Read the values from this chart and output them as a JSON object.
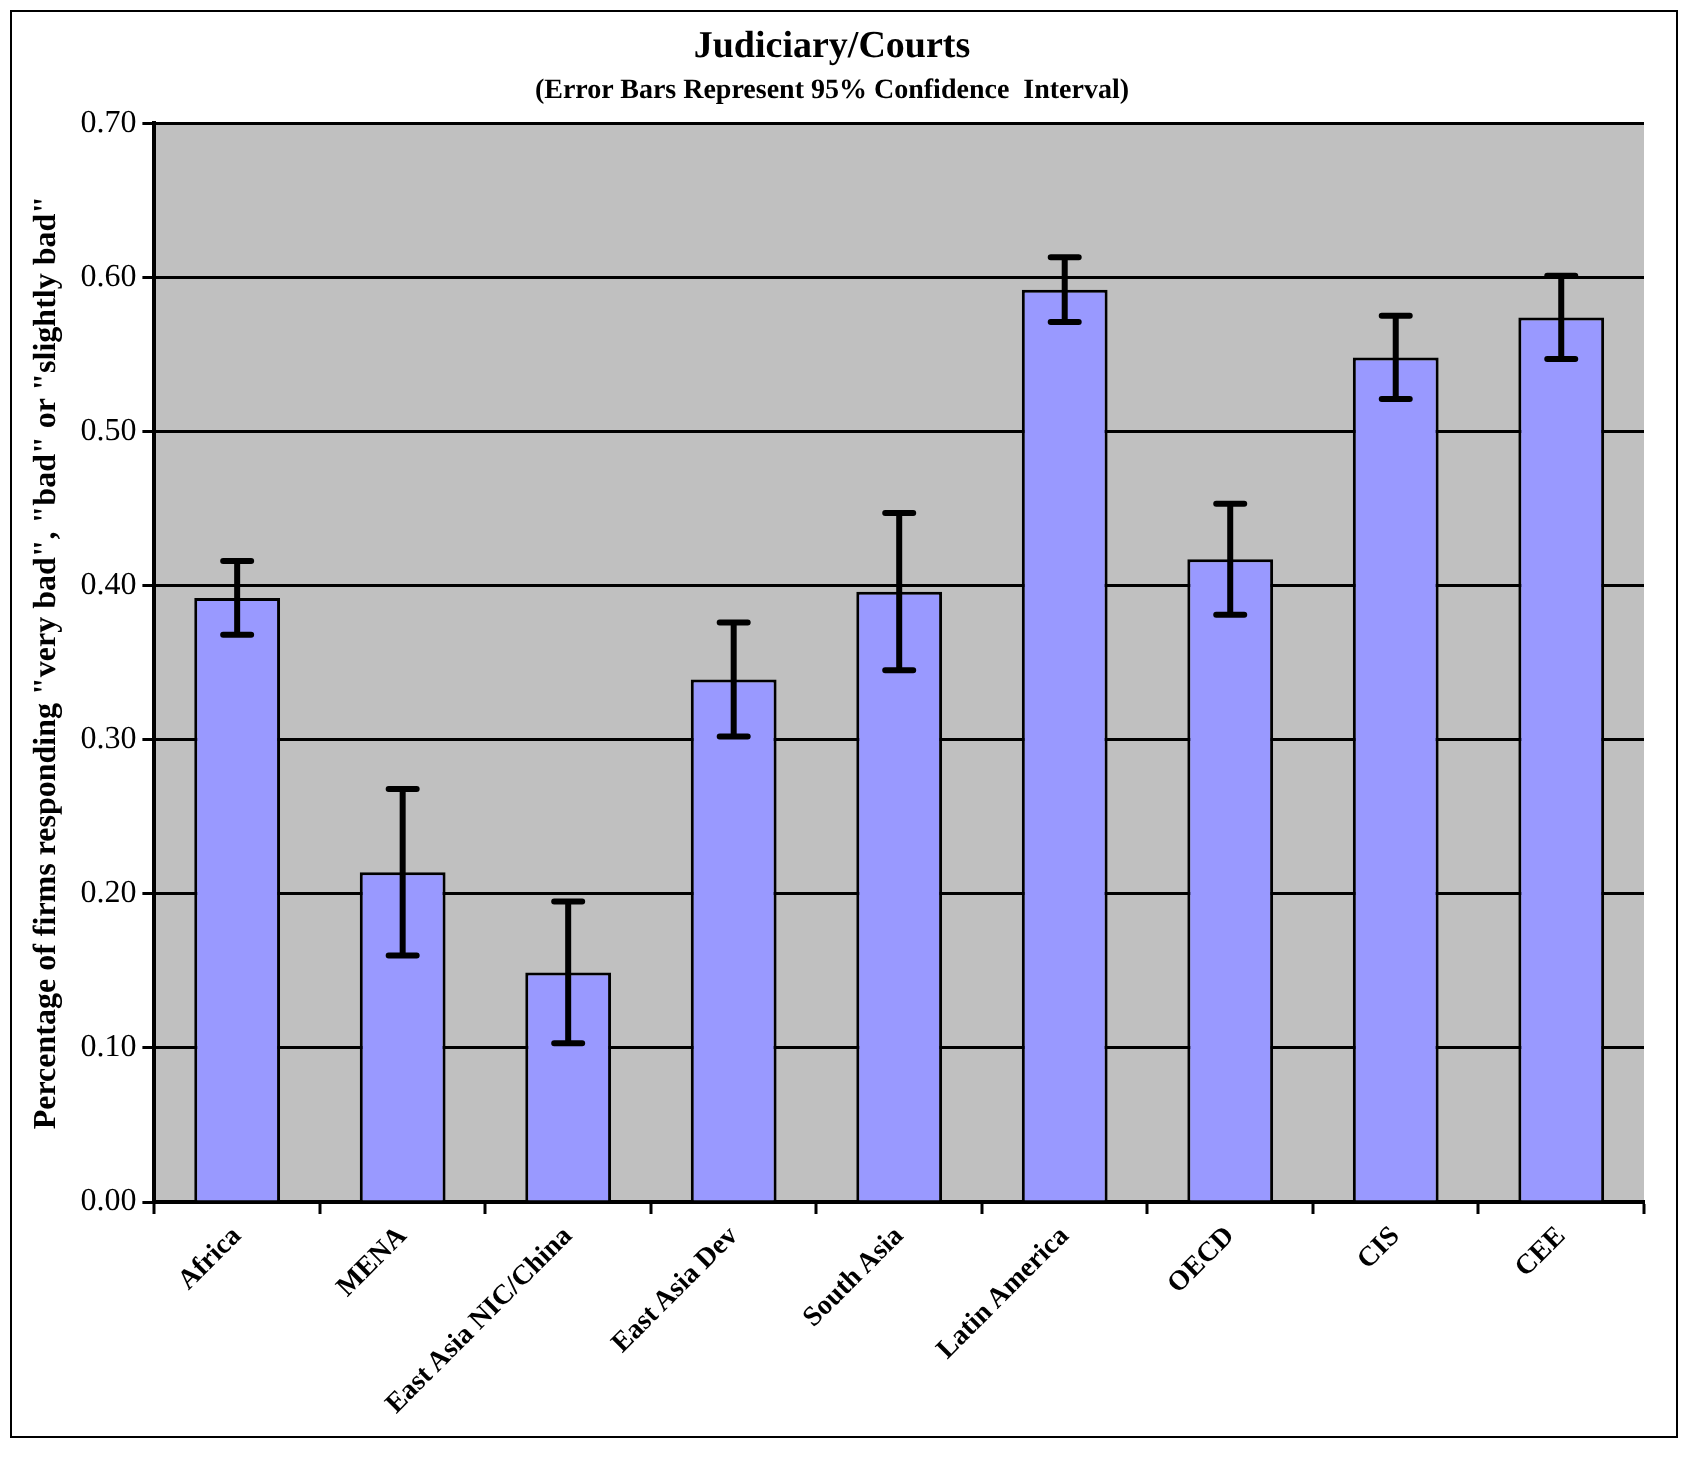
{
  "chart_data": {
    "type": "bar",
    "title": "Judiciary/Courts",
    "subtitle": "(Error Bars Represent 95% Confidence  Interval)",
    "ylabel": "Percentage of firms responding \"very bad\", \"bad\" or \"slightly bad\"",
    "categories": [
      "Africa",
      "MENA",
      "East Asia NIC/China",
      "East Asia Dev",
      "South Asia",
      "Latin America",
      "OECD",
      "CIS",
      "CEE"
    ],
    "values": [
      0.392,
      0.214,
      0.149,
      0.339,
      0.396,
      0.592,
      0.417,
      0.548,
      0.574
    ],
    "errors": [
      0.024,
      0.054,
      0.046,
      0.037,
      0.051,
      0.021,
      0.036,
      0.027,
      0.027
    ],
    "color": "#9999ff",
    "ylim": [
      0,
      0.7
    ],
    "yticks": [
      {
        "value": 0,
        "label": "0.00"
      },
      {
        "value": 0.1,
        "label": "0.10"
      },
      {
        "value": 0.2,
        "label": "0.20"
      },
      {
        "value": 0.3,
        "label": "0.30"
      },
      {
        "value": 0.4,
        "label": "0.40"
      },
      {
        "value": 0.5,
        "label": "0.50"
      },
      {
        "value": 0.6,
        "label": "0.60"
      },
      {
        "value": 0.7,
        "label": "0.70"
      }
    ],
    "grid": "y",
    "legend": false
  }
}
